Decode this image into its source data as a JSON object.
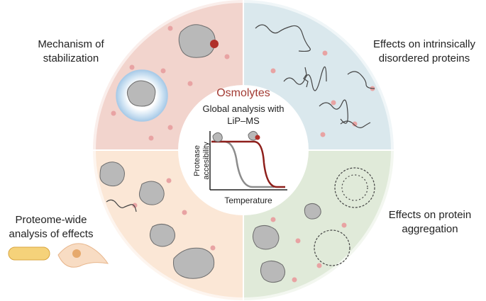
{
  "labels": {
    "top_left": [
      "Mechanism of",
      "stabilization"
    ],
    "top_right": [
      "Effects on intrinsically",
      "disordered proteins"
    ],
    "bottom_left": [
      "Proteome-wide",
      "analysis of effects"
    ],
    "bottom_right": [
      "Effects on protein",
      "aggregation"
    ]
  },
  "center": {
    "title": "Osmolytes",
    "subtitle": [
      "Global analysis with",
      "LiP–MS"
    ],
    "y_axis_label": [
      "Protease",
      "accesibility"
    ],
    "x_axis_label": "Temperature"
  }
}
